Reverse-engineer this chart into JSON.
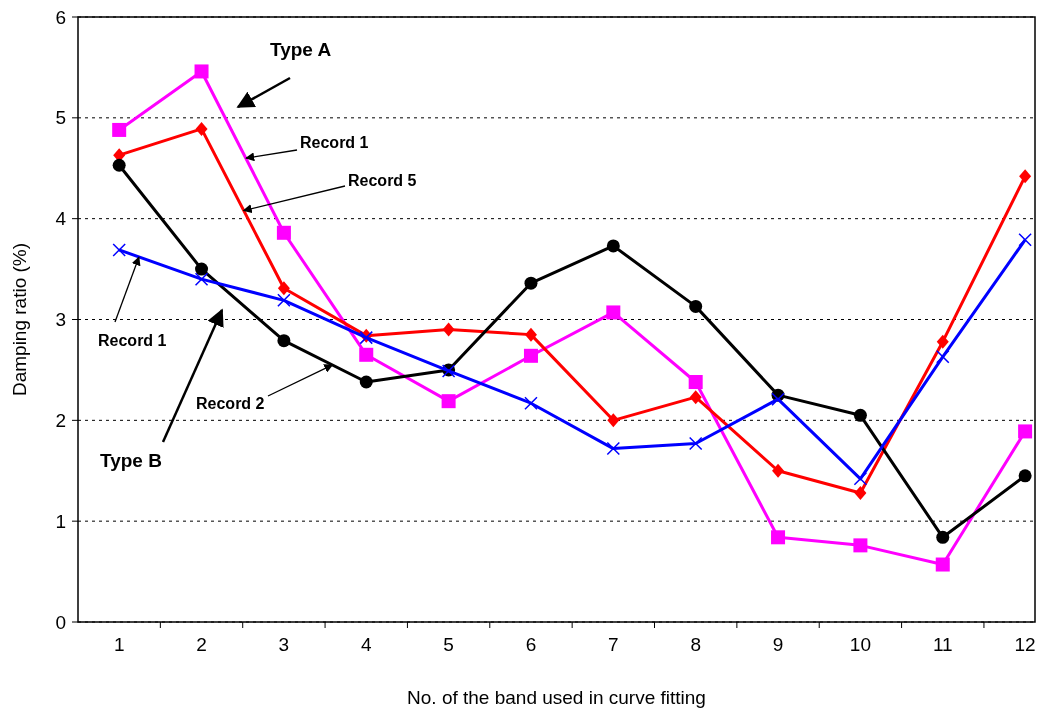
{
  "chart_data": {
    "type": "line",
    "xlabel": "No. of the band used in curve fitting",
    "ylabel": "Damping ratio (%)",
    "x": [
      1,
      2,
      3,
      4,
      5,
      6,
      7,
      8,
      9,
      10,
      11,
      12
    ],
    "xlim": [
      0.5,
      12.12
    ],
    "xticks": [
      1,
      {
        "value": 1.5,
        "label": null
      },
      2,
      {
        "value": 2.5,
        "label": null
      },
      3,
      {
        "value": 3.5,
        "label": null
      },
      4,
      {
        "value": 4.5,
        "label": null
      },
      5,
      {
        "value": 5.5,
        "label": null
      },
      6,
      {
        "value": 6.5,
        "label": null
      },
      7,
      {
        "value": 7.5,
        "label": null
      },
      8,
      {
        "value": 8.5,
        "label": null
      },
      9,
      {
        "value": 9.5,
        "label": null
      },
      10,
      {
        "value": 10.5,
        "label": null
      },
      11,
      {
        "value": 11.5,
        "label": null
      },
      12
    ],
    "ylim": [
      0,
      6
    ],
    "yticks": [
      0,
      1,
      2,
      3,
      4,
      5,
      6
    ],
    "grid": "y",
    "legend": false,
    "line_style": "solid",
    "series": [
      {
        "color": "#ff00ff",
        "marker": "square",
        "values": [
          4.88,
          5.46,
          3.86,
          2.65,
          2.19,
          2.64,
          3.07,
          2.38,
          0.84,
          0.76,
          0.57,
          1.89
        ]
      },
      {
        "color": "#ff0000",
        "marker": "diamond",
        "values": [
          4.63,
          4.89,
          3.31,
          2.84,
          2.9,
          2.85,
          2.0,
          2.23,
          1.5,
          1.28,
          2.78,
          4.42
        ]
      },
      {
        "color": "#000000",
        "marker": "circle",
        "values": [
          4.53,
          3.5,
          2.79,
          2.38,
          2.5,
          3.36,
          3.73,
          3.13,
          2.25,
          2.05,
          0.84,
          1.45
        ]
      },
      {
        "color": "#0000ff",
        "marker": "cross",
        "values": [
          3.69,
          3.4,
          3.19,
          2.82,
          2.49,
          2.17,
          1.72,
          1.77,
          2.21,
          1.42,
          2.63,
          3.79
        ]
      }
    ],
    "annotations": [
      "Type A",
      {
        "text": "Record 1",
        "x": 2.54,
        "y": 4.6
      },
      {
        "text": "Record 5",
        "x": 2.51,
        "y": 4.08
      },
      {
        "text": "Record 1",
        "x": 1.24,
        "y": 3.62
      },
      {
        "text": "Record 2",
        "x": 3.59,
        "y": 2.55
      },
      "Type B"
    ]
  }
}
